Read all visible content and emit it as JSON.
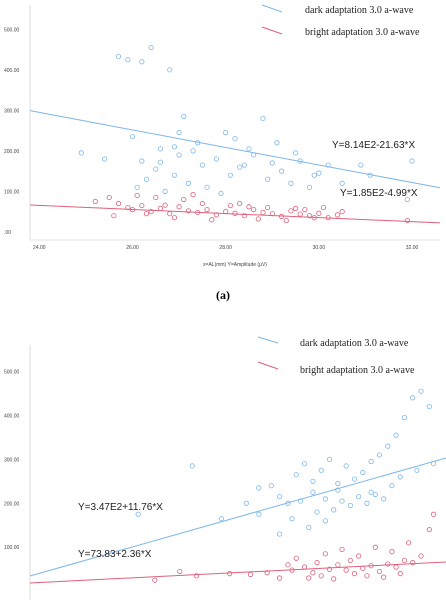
{
  "chart_data": [
    {
      "type": "scatter",
      "caption": "(a)",
      "xlabel": "x=AL(mm)  Y=Amplitude  (µV)",
      "ylabel": "",
      "xlim": [
        23.8,
        32.6
      ],
      "ylim": [
        -20,
        560
      ],
      "x_ticks": [
        "24.00",
        "26.00",
        "28.00",
        "30.00",
        "32.00"
      ],
      "y_ticks": [
        ".00",
        "100.00",
        "200.00",
        "300.00",
        "400.00",
        "500.00"
      ],
      "legend": {
        "placement": "top-right"
      },
      "series": [
        {
          "name": "dark adaptation 3.0 a-wave",
          "color": "#7eb6ea",
          "equation": "Y=8.14E2-21.63*X",
          "fit": {
            "intercept": 814,
            "slope": -21.63
          },
          "points": [
            [
              24.9,
              195
            ],
            [
              25.7,
              433
            ],
            [
              25.9,
              425
            ],
            [
              26.0,
              235
            ],
            [
              26.2,
              420
            ],
            [
              26.4,
              455
            ],
            [
              26.5,
              155
            ],
            [
              26.6,
              172
            ],
            [
              26.8,
              400
            ],
            [
              27.0,
              190
            ],
            [
              26.2,
              175
            ],
            [
              26.7,
              100
            ],
            [
              26.9,
              210
            ],
            [
              27.1,
              285
            ],
            [
              27.3,
              200
            ],
            [
              27.5,
              165
            ],
            [
              27.8,
              180
            ],
            [
              28.0,
              245
            ],
            [
              28.2,
              230
            ],
            [
              28.4,
              165
            ],
            [
              28.6,
              190
            ],
            [
              28.8,
              280
            ],
            [
              29.0,
              170
            ],
            [
              29.2,
              150
            ],
            [
              29.4,
              120
            ],
            [
              29.6,
              175
            ],
            [
              29.8,
              110
            ],
            [
              30.0,
              145
            ],
            [
              30.2,
              165
            ],
            [
              26.3,
              130
            ],
            [
              26.9,
              140
            ],
            [
              27.2,
              120
            ],
            [
              27.6,
              110
            ],
            [
              28.1,
              140
            ],
            [
              28.9,
              130
            ],
            [
              29.5,
              195
            ],
            [
              30.5,
              120
            ],
            [
              32.0,
              175
            ],
            [
              27.0,
              245
            ],
            [
              28.5,
              205
            ],
            [
              29.1,
              220
            ],
            [
              26.6,
              205
            ],
            [
              27.4,
              220
            ],
            [
              28.3,
              160
            ],
            [
              29.9,
              140
            ],
            [
              26.1,
              110
            ],
            [
              25.4,
              180
            ],
            [
              27.9,
              95
            ],
            [
              30.9,
              165
            ],
            [
              31.1,
              140
            ],
            [
              31.9,
              80
            ]
          ]
        },
        {
          "name": "bright adaptation 3.0 a-wave",
          "color": "#e0607a",
          "equation": "Y=1.85E2-4.99*X",
          "fit": {
            "intercept": 185,
            "slope": -4.99
          },
          "points": [
            [
              25.2,
              75
            ],
            [
              25.5,
              85
            ],
            [
              25.7,
              70
            ],
            [
              25.9,
              60
            ],
            [
              26.0,
              55
            ],
            [
              26.2,
              65
            ],
            [
              26.4,
              50
            ],
            [
              26.6,
              58
            ],
            [
              26.8,
              45
            ],
            [
              27.0,
              62
            ],
            [
              27.2,
              52
            ],
            [
              27.4,
              48
            ],
            [
              27.6,
              55
            ],
            [
              27.8,
              42
            ],
            [
              28.0,
              50
            ],
            [
              28.2,
              46
            ],
            [
              28.4,
              40
            ],
            [
              28.6,
              55
            ],
            [
              28.8,
              48
            ],
            [
              29.0,
              45
            ],
            [
              29.2,
              38
            ],
            [
              29.4,
              52
            ],
            [
              29.6,
              44
            ],
            [
              29.8,
              40
            ],
            [
              30.0,
              46
            ],
            [
              30.2,
              35
            ],
            [
              30.4,
              42
            ],
            [
              26.1,
              90
            ],
            [
              26.5,
              85
            ],
            [
              27.1,
              80
            ],
            [
              27.5,
              70
            ],
            [
              28.1,
              65
            ],
            [
              28.9,
              60
            ],
            [
              29.5,
              58
            ],
            [
              30.5,
              50
            ],
            [
              31.9,
              28
            ],
            [
              26.9,
              35
            ],
            [
              27.7,
              30
            ],
            [
              28.7,
              32
            ],
            [
              29.3,
              28
            ],
            [
              25.6,
              40
            ],
            [
              26.3,
              45
            ],
            [
              28.3,
              70
            ],
            [
              29.7,
              55
            ],
            [
              30.1,
              60
            ],
            [
              27.3,
              92
            ],
            [
              26.7,
              66
            ],
            [
              28.5,
              62
            ],
            [
              29.9,
              35
            ]
          ]
        }
      ]
    },
    {
      "type": "scatter",
      "caption": "",
      "xlabel": "",
      "ylabel": "",
      "xlim": [
        0,
        1
      ],
      "ylim": [
        -20,
        560
      ],
      "x_ticks": [],
      "y_ticks": [
        "100.00",
        "200.00",
        "300.00",
        "400.00",
        "500.00"
      ],
      "legend": {
        "placement": "top-right"
      },
      "series": [
        {
          "name": "dark adaptation 3.0 a-wave",
          "color": "#7eb6ea",
          "equation": "Y=3.47E2+11.76*X",
          "points": [
            [
              0.26,
              175
            ],
            [
              0.39,
              285
            ],
            [
              0.46,
              165
            ],
            [
              0.52,
              200
            ],
            [
              0.55,
              235
            ],
            [
              0.58,
              240
            ],
            [
              0.6,
              215
            ],
            [
              0.62,
              200
            ],
            [
              0.64,
              265
            ],
            [
              0.66,
              290
            ],
            [
              0.68,
              250
            ],
            [
              0.7,
              275
            ],
            [
              0.72,
              300
            ],
            [
              0.74,
              230
            ],
            [
              0.76,
              285
            ],
            [
              0.78,
              255
            ],
            [
              0.8,
              270
            ],
            [
              0.82,
              295
            ],
            [
              0.84,
              310
            ],
            [
              0.86,
              330
            ],
            [
              0.88,
              355
            ],
            [
              0.9,
              395
            ],
            [
              0.92,
              440
            ],
            [
              0.94,
              455
            ],
            [
              0.96,
              420
            ],
            [
              0.97,
              290
            ],
            [
              0.65,
              205
            ],
            [
              0.71,
              210
            ],
            [
              0.75,
              205
            ],
            [
              0.79,
              215
            ],
            [
              0.83,
              220
            ],
            [
              0.87,
              240
            ],
            [
              0.63,
              165
            ],
            [
              0.69,
              180
            ],
            [
              0.73,
              185
            ],
            [
              0.77,
              195
            ],
            [
              0.81,
              200
            ],
            [
              0.85,
              210
            ],
            [
              0.6,
              130
            ],
            [
              0.67,
              145
            ],
            [
              0.71,
              160
            ],
            [
              0.89,
              260
            ],
            [
              0.93,
              275
            ],
            [
              0.55,
              175
            ],
            [
              0.82,
              225
            ],
            [
              0.74,
              245
            ],
            [
              0.68,
              225
            ]
          ]
        },
        {
          "name": "bright adaptation 3.0 a-wave",
          "color": "#e0607a",
          "equation": "Y=73.83+2.36*X",
          "points": [
            [
              0.3,
              25
            ],
            [
              0.36,
              45
            ],
            [
              0.4,
              35
            ],
            [
              0.48,
              40
            ],
            [
              0.53,
              38
            ],
            [
              0.57,
              42
            ],
            [
              0.6,
              30
            ],
            [
              0.63,
              48
            ],
            [
              0.66,
              55
            ],
            [
              0.68,
              42
            ],
            [
              0.7,
              35
            ],
            [
              0.72,
              50
            ],
            [
              0.74,
              60
            ],
            [
              0.76,
              48
            ],
            [
              0.78,
              40
            ],
            [
              0.8,
              52
            ],
            [
              0.82,
              58
            ],
            [
              0.84,
              45
            ],
            [
              0.86,
              62
            ],
            [
              0.88,
              55
            ],
            [
              0.9,
              70
            ],
            [
              0.92,
              65
            ],
            [
              0.94,
              80
            ],
            [
              0.96,
              140
            ],
            [
              0.97,
              175
            ],
            [
              0.64,
              75
            ],
            [
              0.71,
              85
            ],
            [
              0.75,
              95
            ],
            [
              0.79,
              80
            ],
            [
              0.83,
              100
            ],
            [
              0.87,
              90
            ],
            [
              0.91,
              110
            ],
            [
              0.67,
              30
            ],
            [
              0.73,
              28
            ],
            [
              0.81,
              35
            ],
            [
              0.85,
              32
            ],
            [
              0.89,
              40
            ],
            [
              0.62,
              60
            ],
            [
              0.77,
              70
            ],
            [
              0.69,
              65
            ]
          ]
        }
      ]
    }
  ]
}
